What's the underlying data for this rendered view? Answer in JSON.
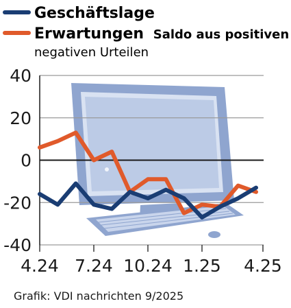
{
  "chart_data": {
    "type": "line",
    "x_tick_labels": [
      "4.24",
      "7.24",
      "10.24",
      "1.25",
      "4.25"
    ],
    "ylim": [
      -40,
      40
    ],
    "y_ticks": [
      40,
      20,
      0,
      -20,
      -40
    ],
    "legend": {
      "placement": "top-left",
      "subtitle_line1": "Saldo aus positiven und",
      "subtitle_line2": "negativen Urteilen"
    },
    "series": [
      {
        "name": "Geschäftslage",
        "color": "#1a3d73",
        "values": [
          -16,
          -21,
          -11,
          -21,
          -23,
          -15,
          -18,
          -14,
          -18,
          -27,
          -22,
          -18,
          -13
        ]
      },
      {
        "name": "Erwartungen",
        "color": "#e05a2b",
        "values": [
          6,
          9,
          13,
          0,
          4,
          -15,
          -9,
          -9,
          -25,
          -21,
          -22,
          -12,
          -15
        ]
      }
    ],
    "grid": true,
    "source": "Grafik: VDI nachrichten 9/2025",
    "background_image": "computer-monitor-keyboard-illustration"
  }
}
